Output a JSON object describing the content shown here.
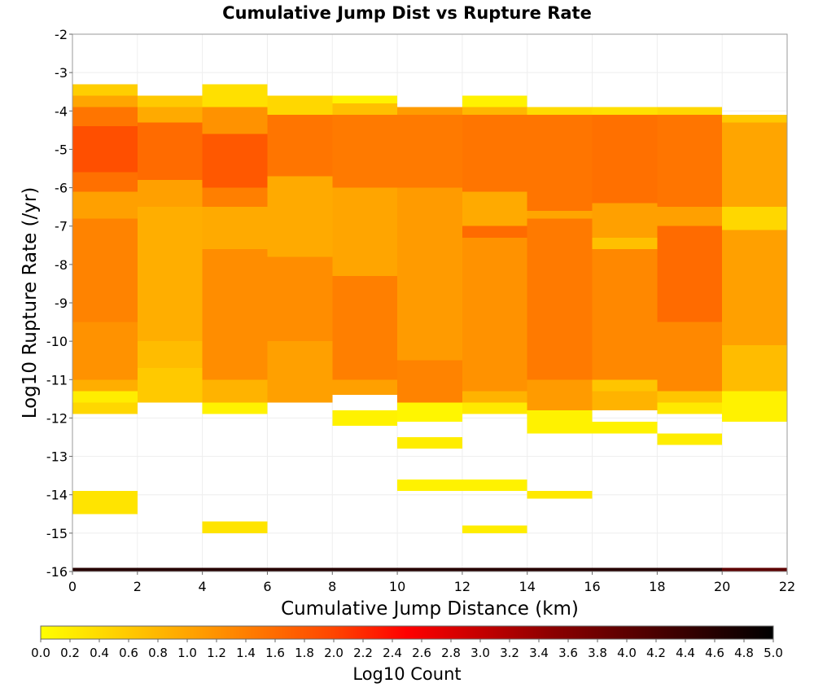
{
  "chart_data": {
    "type": "heatmap",
    "title": "Cumulative Jump Dist vs Rupture Rate",
    "xlabel": "Cumulative Jump Distance (km)",
    "ylabel": "Log10 Rupture Rate (/yr)",
    "xlim": [
      0,
      22
    ],
    "ylim": [
      -16,
      -2
    ],
    "x_ticks": [
      0,
      2,
      4,
      6,
      8,
      10,
      12,
      14,
      16,
      18,
      20,
      22
    ],
    "y_ticks": [
      -2,
      -3,
      -4,
      -5,
      -6,
      -7,
      -8,
      -9,
      -10,
      -11,
      -12,
      -13,
      -14,
      -15,
      -16
    ],
    "x_bin_width": 2,
    "y_bin_height": 0.1,
    "grid": true,
    "colorbar": {
      "label": "Log10 Count",
      "range": [
        0.0,
        5.0
      ],
      "ticks": [
        "0.0",
        "0.2",
        "0.4",
        "0.6",
        "0.8",
        "1.0",
        "1.2",
        "1.4",
        "1.6",
        "1.8",
        "2.0",
        "2.2",
        "2.4",
        "2.6",
        "2.8",
        "3.0",
        "3.2",
        "3.4",
        "3.6",
        "3.8",
        "4.0",
        "4.2",
        "4.4",
        "4.6",
        "4.8",
        "5.0"
      ],
      "stops": [
        {
          "value": 0.0,
          "color": "#ffff00"
        },
        {
          "value": 1.0,
          "color": "#ffa500"
        },
        {
          "value": 2.0,
          "color": "#ff4500"
        },
        {
          "value": 2.5,
          "color": "#ff0000"
        },
        {
          "value": 3.5,
          "color": "#8b0000"
        },
        {
          "value": 5.0,
          "color": "#000000"
        }
      ]
    },
    "cells": [
      {
        "x0": 0,
        "y_top": -3.3,
        "y_bottom": -3.6,
        "value": 0.55
      },
      {
        "x0": 0,
        "y_top": -3.6,
        "y_bottom": -3.9,
        "value": 1.0
      },
      {
        "x0": 0,
        "y_top": -3.9,
        "y_bottom": -4.4,
        "value": 1.5
      },
      {
        "x0": 0,
        "y_top": -4.4,
        "y_bottom": -5.6,
        "value": 1.9
      },
      {
        "x0": 0,
        "y_top": -5.6,
        "y_bottom": -6.1,
        "value": 1.55
      },
      {
        "x0": 0,
        "y_top": -6.1,
        "y_bottom": -6.8,
        "value": 1.05
      },
      {
        "x0": 0,
        "y_top": -6.8,
        "y_bottom": -9.5,
        "value": 1.35
      },
      {
        "x0": 0,
        "y_top": -9.5,
        "y_bottom": -11.0,
        "value": 1.2
      },
      {
        "x0": 0,
        "y_top": -11.0,
        "y_bottom": -11.3,
        "value": 0.9
      },
      {
        "x0": 0,
        "y_top": -11.3,
        "y_bottom": -11.6,
        "value": 0.2
      },
      {
        "x0": 0,
        "y_top": -11.6,
        "y_bottom": -11.9,
        "value": 0.45
      },
      {
        "x0": 0,
        "y_top": -13.9,
        "y_bottom": -14.5,
        "value": 0.3
      },
      {
        "x0": 0,
        "y_top": -15.9,
        "y_bottom": -16.0,
        "value": 4.6
      },
      {
        "x0": 2,
        "y_top": -3.6,
        "y_bottom": -3.9,
        "value": 0.6
      },
      {
        "x0": 2,
        "y_top": -3.9,
        "y_bottom": -4.3,
        "value": 0.95
      },
      {
        "x0": 2,
        "y_top": -4.3,
        "y_bottom": -5.8,
        "value": 1.6
      },
      {
        "x0": 2,
        "y_top": -5.8,
        "y_bottom": -6.5,
        "value": 1.05
      },
      {
        "x0": 2,
        "y_top": -6.5,
        "y_bottom": -10.0,
        "value": 0.9
      },
      {
        "x0": 2,
        "y_top": -10.0,
        "y_bottom": -10.7,
        "value": 0.75
      },
      {
        "x0": 2,
        "y_top": -10.7,
        "y_bottom": -11.6,
        "value": 0.6
      },
      {
        "x0": 2,
        "y_top": -15.9,
        "y_bottom": -16.0,
        "value": 4.6
      },
      {
        "x0": 4,
        "y_top": -3.3,
        "y_bottom": -3.9,
        "value": 0.35
      },
      {
        "x0": 4,
        "y_top": -3.9,
        "y_bottom": -4.6,
        "value": 1.2
      },
      {
        "x0": 4,
        "y_top": -4.6,
        "y_bottom": -6.0,
        "value": 1.8
      },
      {
        "x0": 4,
        "y_top": -6.0,
        "y_bottom": -6.5,
        "value": 1.4
      },
      {
        "x0": 4,
        "y_top": -6.5,
        "y_bottom": -7.6,
        "value": 0.95
      },
      {
        "x0": 4,
        "y_top": -7.6,
        "y_bottom": -11.0,
        "value": 1.25
      },
      {
        "x0": 4,
        "y_top": -11.0,
        "y_bottom": -11.6,
        "value": 0.85
      },
      {
        "x0": 4,
        "y_top": -11.6,
        "y_bottom": -11.9,
        "value": 0.15
      },
      {
        "x0": 4,
        "y_top": -14.7,
        "y_bottom": -15.0,
        "value": 0.3
      },
      {
        "x0": 4,
        "y_top": -15.9,
        "y_bottom": -16.0,
        "value": 4.6
      },
      {
        "x0": 6,
        "y_top": -3.6,
        "y_bottom": -4.1,
        "value": 0.45
      },
      {
        "x0": 6,
        "y_top": -4.1,
        "y_bottom": -5.7,
        "value": 1.5
      },
      {
        "x0": 6,
        "y_top": -5.7,
        "y_bottom": -7.8,
        "value": 0.95
      },
      {
        "x0": 6,
        "y_top": -7.8,
        "y_bottom": -10.0,
        "value": 1.25
      },
      {
        "x0": 6,
        "y_top": -10.0,
        "y_bottom": -11.6,
        "value": 1.05
      },
      {
        "x0": 6,
        "y_top": -15.9,
        "y_bottom": -16.0,
        "value": 4.6
      },
      {
        "x0": 8,
        "y_top": -3.6,
        "y_bottom": -3.8,
        "value": 0.15
      },
      {
        "x0": 8,
        "y_top": -3.8,
        "y_bottom": -4.1,
        "value": 0.7
      },
      {
        "x0": 8,
        "y_top": -4.1,
        "y_bottom": -6.0,
        "value": 1.45
      },
      {
        "x0": 8,
        "y_top": -6.0,
        "y_bottom": -8.3,
        "value": 1.0
      },
      {
        "x0": 8,
        "y_top": -8.3,
        "y_bottom": -11.0,
        "value": 1.4
      },
      {
        "x0": 8,
        "y_top": -11.0,
        "y_bottom": -11.4,
        "value": 1.05
      },
      {
        "x0": 8,
        "y_top": -11.8,
        "y_bottom": -12.2,
        "value": 0.15
      },
      {
        "x0": 8,
        "y_top": -15.9,
        "y_bottom": -16.0,
        "value": 4.6
      },
      {
        "x0": 10,
        "y_top": -3.9,
        "y_bottom": -4.1,
        "value": 1.1
      },
      {
        "x0": 10,
        "y_top": -4.1,
        "y_bottom": -6.0,
        "value": 1.45
      },
      {
        "x0": 10,
        "y_top": -6.0,
        "y_bottom": -10.5,
        "value": 1.1
      },
      {
        "x0": 10,
        "y_top": -10.5,
        "y_bottom": -11.6,
        "value": 1.35
      },
      {
        "x0": 10,
        "y_top": -11.6,
        "y_bottom": -12.1,
        "value": 0.1
      },
      {
        "x0": 10,
        "y_top": -12.5,
        "y_bottom": -12.8,
        "value": 0.2
      },
      {
        "x0": 10,
        "y_top": -13.6,
        "y_bottom": -13.9,
        "value": 0.15
      },
      {
        "x0": 10,
        "y_top": -15.9,
        "y_bottom": -16.0,
        "value": 4.6
      },
      {
        "x0": 12,
        "y_top": -3.6,
        "y_bottom": -3.9,
        "value": 0.15
      },
      {
        "x0": 12,
        "y_top": -3.9,
        "y_bottom": -4.1,
        "value": 0.8
      },
      {
        "x0": 12,
        "y_top": -4.1,
        "y_bottom": -6.1,
        "value": 1.5
      },
      {
        "x0": 12,
        "y_top": -6.1,
        "y_bottom": -7.0,
        "value": 0.95
      },
      {
        "x0": 12,
        "y_top": -7.0,
        "y_bottom": -7.3,
        "value": 1.6
      },
      {
        "x0": 12,
        "y_top": -7.3,
        "y_bottom": -11.3,
        "value": 1.2
      },
      {
        "x0": 12,
        "y_top": -11.3,
        "y_bottom": -11.6,
        "value": 0.85
      },
      {
        "x0": 12,
        "y_top": -11.6,
        "y_bottom": -11.9,
        "value": 0.25
      },
      {
        "x0": 12,
        "y_top": -13.6,
        "y_bottom": -13.9,
        "value": 0.15
      },
      {
        "x0": 12,
        "y_top": -14.8,
        "y_bottom": -15.0,
        "value": 0.2
      },
      {
        "x0": 12,
        "y_top": -15.9,
        "y_bottom": -16.0,
        "value": 4.6
      },
      {
        "x0": 14,
        "y_top": -3.9,
        "y_bottom": -4.1,
        "value": 0.4
      },
      {
        "x0": 14,
        "y_top": -4.1,
        "y_bottom": -6.6,
        "value": 1.5
      },
      {
        "x0": 14,
        "y_top": -6.6,
        "y_bottom": -6.8,
        "value": 1.0
      },
      {
        "x0": 14,
        "y_top": -6.8,
        "y_bottom": -11.0,
        "value": 1.45
      },
      {
        "x0": 14,
        "y_top": -11.0,
        "y_bottom": -11.8,
        "value": 1.1
      },
      {
        "x0": 14,
        "y_top": -11.8,
        "y_bottom": -12.4,
        "value": 0.15
      },
      {
        "x0": 14,
        "y_top": -13.9,
        "y_bottom": -14.1,
        "value": 0.25
      },
      {
        "x0": 14,
        "y_top": -15.9,
        "y_bottom": -16.0,
        "value": 4.6
      },
      {
        "x0": 16,
        "y_top": -3.9,
        "y_bottom": -4.1,
        "value": 0.35
      },
      {
        "x0": 16,
        "y_top": -4.1,
        "y_bottom": -6.4,
        "value": 1.55
      },
      {
        "x0": 16,
        "y_top": -6.4,
        "y_bottom": -7.3,
        "value": 1.05
      },
      {
        "x0": 16,
        "y_top": -7.3,
        "y_bottom": -7.6,
        "value": 0.7
      },
      {
        "x0": 16,
        "y_top": -7.6,
        "y_bottom": -11.0,
        "value": 1.3
      },
      {
        "x0": 16,
        "y_top": -11.0,
        "y_bottom": -11.3,
        "value": 0.65
      },
      {
        "x0": 16,
        "y_top": -11.3,
        "y_bottom": -11.8,
        "value": 0.85
      },
      {
        "x0": 16,
        "y_top": -12.1,
        "y_bottom": -12.4,
        "value": 0.15
      },
      {
        "x0": 16,
        "y_top": -15.9,
        "y_bottom": -16.0,
        "value": 4.6
      },
      {
        "x0": 18,
        "y_top": -3.9,
        "y_bottom": -4.1,
        "value": 0.45
      },
      {
        "x0": 18,
        "y_top": -4.1,
        "y_bottom": -6.5,
        "value": 1.5
      },
      {
        "x0": 18,
        "y_top": -6.5,
        "y_bottom": -7.0,
        "value": 1.05
      },
      {
        "x0": 18,
        "y_top": -7.0,
        "y_bottom": -9.5,
        "value": 1.6
      },
      {
        "x0": 18,
        "y_top": -9.5,
        "y_bottom": -11.3,
        "value": 1.3
      },
      {
        "x0": 18,
        "y_top": -11.3,
        "y_bottom": -11.6,
        "value": 0.65
      },
      {
        "x0": 18,
        "y_top": -11.6,
        "y_bottom": -11.9,
        "value": 0.25
      },
      {
        "x0": 18,
        "y_top": -12.4,
        "y_bottom": -12.7,
        "value": 0.2
      },
      {
        "x0": 18,
        "y_top": -15.9,
        "y_bottom": -16.0,
        "value": 4.6
      },
      {
        "x0": 20,
        "y_top": -4.1,
        "y_bottom": -4.3,
        "value": 0.6
      },
      {
        "x0": 20,
        "y_top": -4.3,
        "y_bottom": -6.5,
        "value": 1.0
      },
      {
        "x0": 20,
        "y_top": -6.5,
        "y_bottom": -7.1,
        "value": 0.45
      },
      {
        "x0": 20,
        "y_top": -7.1,
        "y_bottom": -10.1,
        "value": 1.05
      },
      {
        "x0": 20,
        "y_top": -10.1,
        "y_bottom": -11.3,
        "value": 0.75
      },
      {
        "x0": 20,
        "y_top": -11.3,
        "y_bottom": -12.1,
        "value": 0.15
      },
      {
        "x0": 20,
        "y_top": -15.9,
        "y_bottom": -16.0,
        "value": 4.0
      }
    ]
  }
}
